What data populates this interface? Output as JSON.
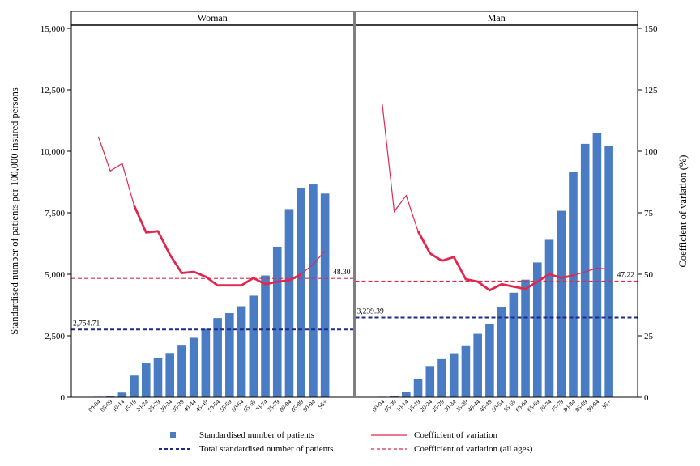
{
  "chart_data": {
    "type": "bar",
    "ylabel": "Standardised number of patients per 100,000 insured persons",
    "y2label": "Coefficient of variation (%)",
    "ylim": [
      0,
      15000
    ],
    "y2lim": [
      0,
      150
    ],
    "yticks": [
      "0",
      "2,500",
      "5,000",
      "7,500",
      "10,000",
      "12,500",
      "15,000"
    ],
    "y2ticks": [
      "0",
      "25",
      "50",
      "75",
      "100",
      "125",
      "150"
    ],
    "categories": [
      "00-04",
      "05-09",
      "10-14",
      "15-19",
      "20-24",
      "25-29",
      "30-34",
      "35-39",
      "40-44",
      "45-49",
      "50-54",
      "55-59",
      "60-64",
      "65-69",
      "70-74",
      "75-79",
      "80-84",
      "85-89",
      "90-94",
      "95+"
    ],
    "panels": [
      {
        "title": "Woman",
        "bars": [
          20,
          60,
          190,
          880,
          1380,
          1580,
          1800,
          2100,
          2420,
          2780,
          3220,
          3420,
          3700,
          4130,
          4950,
          6120,
          7650,
          8520,
          8650,
          8280
        ],
        "cv": [
          106,
          92,
          95,
          78,
          67,
          67.5,
          58,
          50.5,
          51,
          49,
          45.5,
          45.5,
          45.5,
          48.5,
          46,
          47,
          47.5,
          50,
          54,
          59.5
        ],
        "total": 2754.71,
        "total_label": "2,754.71",
        "cv_all": 48.3,
        "cv_all_label": "48.30"
      },
      {
        "title": "Man",
        "bars": [
          20,
          60,
          200,
          740,
          1240,
          1550,
          1790,
          2080,
          2580,
          2970,
          3650,
          4250,
          4780,
          5480,
          6400,
          7580,
          9150,
          10300,
          10750,
          10200
        ],
        "cv": [
          119,
          75.5,
          82,
          67.5,
          58.5,
          55.5,
          57,
          48,
          47,
          43.5,
          46,
          45,
          44,
          47,
          50,
          48.5,
          49.5,
          51,
          52.5,
          52
        ],
        "total": 3239.39,
        "total_label": "3,239.39",
        "cv_all": 47.22,
        "cv_all_label": "47.22"
      }
    ],
    "legend": {
      "bars": "Standardised number of patients",
      "cv": "Coefficient of variation",
      "total": "Total standardised number of patients",
      "cv_all": "Coefficient of variation (all ages)"
    },
    "colors": {
      "bar": "#4a7cc4",
      "cv": "#e0284f",
      "total": "#1f2a8a",
      "cv_all": "#d92c4d"
    },
    "grid": false,
    "legend_position": "bottom"
  }
}
